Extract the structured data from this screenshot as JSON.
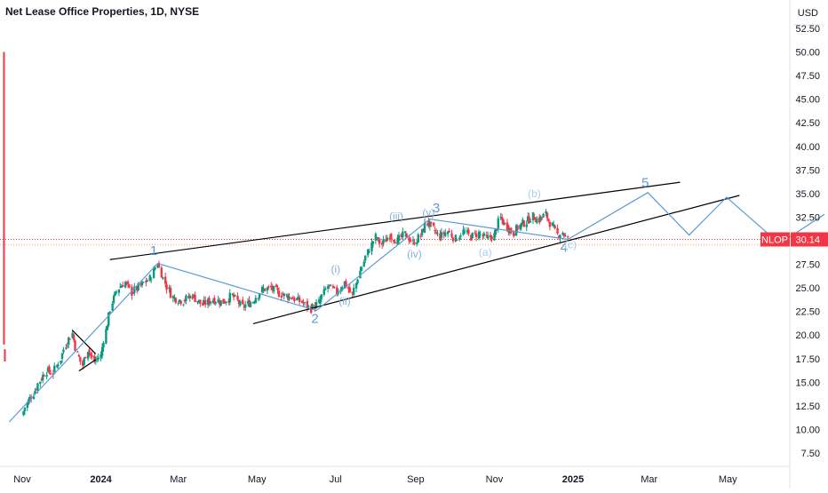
{
  "header": {
    "title": "Net Lease Office Properties, 1D, NYSE",
    "currency": "USD"
  },
  "price_label": {
    "symbol": "NLOP",
    "value": "30.14",
    "color": "#f23645"
  },
  "colors": {
    "up": "#089981",
    "down": "#f23645",
    "wave": "#5b9bd5",
    "minor_label": "#7fb2e0",
    "corrective_label": "#a8cdee",
    "trendline": "#000000",
    "axis_text": "#131722",
    "grid": "#e0e3eb"
  },
  "chart_data": {
    "type": "line",
    "title": "Net Lease Office Properties, 1D, NYSE",
    "xlabel": "",
    "ylabel": "USD",
    "ylim": [
      6.0,
      54.0
    ],
    "grid": false,
    "y_ticks": [
      "52.50",
      "50.00",
      "47.50",
      "45.00",
      "42.50",
      "40.00",
      "37.50",
      "35.00",
      "32.50",
      "30.00",
      "27.50",
      "25.00",
      "22.50",
      "20.00",
      "17.50",
      "15.00",
      "12.50",
      "10.00",
      "7.50"
    ],
    "x_ticks": [
      {
        "label": "Nov",
        "x": "2023-11-01",
        "bold": false
      },
      {
        "label": "2024",
        "x": "2024-01-01",
        "bold": true
      },
      {
        "label": "Mar",
        "x": "2024-03-01",
        "bold": false
      },
      {
        "label": "May",
        "x": "2024-05-01",
        "bold": false
      },
      {
        "label": "Jul",
        "x": "2024-07-01",
        "bold": false
      },
      {
        "label": "Sep",
        "x": "2024-09-01",
        "bold": false
      },
      {
        "label": "Nov",
        "x": "2024-11-01",
        "bold": false
      },
      {
        "label": "2025",
        "x": "2025-01-01",
        "bold": true
      },
      {
        "label": "Mar",
        "x": "2025-03-01",
        "bold": false
      },
      {
        "label": "May",
        "x": "2025-05-01",
        "bold": false
      }
    ],
    "x_range": [
      "2023-10-20",
      "2025-07-15"
    ],
    "price_path": [
      [
        "2023-11-01",
        11.5
      ],
      [
        "2023-11-05",
        12.8
      ],
      [
        "2023-11-10",
        13.8
      ],
      [
        "2023-11-15",
        15.2
      ],
      [
        "2023-11-20",
        16.2
      ],
      [
        "2023-11-25",
        16.0
      ],
      [
        "2023-12-01",
        17.5
      ],
      [
        "2023-12-05",
        19.0
      ],
      [
        "2023-12-10",
        20.2
      ],
      [
        "2023-12-14",
        18.0
      ],
      [
        "2023-12-18",
        16.8
      ],
      [
        "2023-12-22",
        18.5
      ],
      [
        "2023-12-27",
        17.2
      ],
      [
        "2024-01-01",
        17.8
      ],
      [
        "2024-01-05",
        20.5
      ],
      [
        "2024-01-10",
        23.5
      ],
      [
        "2024-01-15",
        25.0
      ],
      [
        "2024-01-20",
        25.6
      ],
      [
        "2024-01-25",
        24.5
      ],
      [
        "2024-02-01",
        25.2
      ],
      [
        "2024-02-08",
        26.0
      ],
      [
        "2024-02-14",
        27.6
      ],
      [
        "2024-02-20",
        25.5
      ],
      [
        "2024-02-26",
        24.0
      ],
      [
        "2024-03-05",
        23.6
      ],
      [
        "2024-03-12",
        24.2
      ],
      [
        "2024-03-20",
        23.2
      ],
      [
        "2024-03-28",
        23.8
      ],
      [
        "2024-04-05",
        23.5
      ],
      [
        "2024-04-12",
        24.2
      ],
      [
        "2024-04-20",
        23.0
      ],
      [
        "2024-04-28",
        23.6
      ],
      [
        "2024-05-05",
        24.8
      ],
      [
        "2024-05-12",
        25.0
      ],
      [
        "2024-05-20",
        24.3
      ],
      [
        "2024-05-28",
        24.0
      ],
      [
        "2024-06-05",
        23.5
      ],
      [
        "2024-06-12",
        22.8
      ],
      [
        "2024-06-18",
        23.4
      ],
      [
        "2024-06-25",
        25.2
      ],
      [
        "2024-07-02",
        24.5
      ],
      [
        "2024-07-08",
        25.6
      ],
      [
        "2024-07-14",
        24.2
      ],
      [
        "2024-07-20",
        26.8
      ],
      [
        "2024-07-26",
        28.8
      ],
      [
        "2024-08-01",
        30.4
      ],
      [
        "2024-08-06",
        29.6
      ],
      [
        "2024-08-12",
        30.6
      ],
      [
        "2024-08-18",
        30.0
      ],
      [
        "2024-08-24",
        30.7
      ],
      [
        "2024-08-30",
        29.8
      ],
      [
        "2024-09-05",
        30.5
      ],
      [
        "2024-09-10",
        32.0
      ],
      [
        "2024-09-15",
        31.2
      ],
      [
        "2024-09-20",
        30.4
      ],
      [
        "2024-09-26",
        31.0
      ],
      [
        "2024-10-02",
        30.2
      ],
      [
        "2024-10-08",
        31.0
      ],
      [
        "2024-10-14",
        30.4
      ],
      [
        "2024-10-20",
        30.8
      ],
      [
        "2024-10-26",
        30.2
      ],
      [
        "2024-11-01",
        30.6
      ],
      [
        "2024-11-06",
        32.4
      ],
      [
        "2024-11-11",
        31.5
      ],
      [
        "2024-11-16",
        30.8
      ],
      [
        "2024-11-21",
        31.6
      ],
      [
        "2024-11-26",
        32.0
      ],
      [
        "2024-12-01",
        32.6
      ],
      [
        "2024-12-06",
        32.2
      ],
      [
        "2024-12-11",
        32.8
      ],
      [
        "2024-12-16",
        31.6
      ],
      [
        "2024-12-20",
        30.6
      ],
      [
        "2024-12-24",
        30.9
      ],
      [
        "2024-12-28",
        30.14
      ]
    ],
    "delisting_bar": {
      "x": "2023-10-22",
      "low": 19.0,
      "high": 50.0
    },
    "wave_path": [
      [
        "2023-10-22",
        10.8
      ],
      [
        "2024-02-14",
        27.6
      ],
      [
        "2024-06-16",
        22.6
      ],
      [
        "2024-09-12",
        32.3
      ],
      [
        "2024-12-28",
        30.14
      ],
      [
        "2025-02-28",
        35.1
      ],
      [
        "2025-04-01",
        30.6
      ],
      [
        "2025-04-30",
        34.6
      ],
      [
        "2025-06-10",
        29.7
      ],
      [
        "2025-07-15",
        32.8
      ]
    ],
    "trendlines": [
      {
        "from": [
          "2024-01-08",
          28.0
        ],
        "to": [
          "2025-03-25",
          36.2
        ]
      },
      {
        "from": [
          "2024-04-28",
          21.2
        ],
        "to": [
          "2025-05-10",
          34.8
        ]
      }
    ],
    "triangle": [
      {
        "from": [
          "2023-12-10",
          20.5
        ],
        "to": [
          "2023-12-28",
          18.0
        ]
      },
      {
        "from": [
          "2023-12-15",
          16.2
        ],
        "to": [
          "2023-12-28",
          17.4
        ]
      }
    ],
    "wave_labels": [
      {
        "text": "1",
        "x": "2024-02-11",
        "y": 28.5,
        "style": "major"
      },
      {
        "text": "2",
        "x": "2024-06-15",
        "y": 21.3,
        "style": "major"
      },
      {
        "text": "3",
        "x": "2024-09-17",
        "y": 33.0,
        "style": "major"
      },
      {
        "text": "4",
        "x": "2024-12-25",
        "y": 28.8,
        "style": "major"
      },
      {
        "text": "5",
        "x": "2025-02-26",
        "y": 35.7,
        "style": "major"
      },
      {
        "text": "(i)",
        "x": "2024-07-01",
        "y": 26.6,
        "style": "minor"
      },
      {
        "text": "(ii)",
        "x": "2024-07-08",
        "y": 23.2,
        "style": "minor"
      },
      {
        "text": "(iii)",
        "x": "2024-08-17",
        "y": 32.2,
        "style": "minor"
      },
      {
        "text": "(iv)",
        "x": "2024-08-31",
        "y": 28.2,
        "style": "minor"
      },
      {
        "text": "(v)",
        "x": "2024-09-11",
        "y": 32.6,
        "style": "minor"
      },
      {
        "text": "(a)",
        "x": "2024-10-25",
        "y": 28.4,
        "style": "corrective"
      },
      {
        "text": "(b)",
        "x": "2024-12-02",
        "y": 34.6,
        "style": "corrective"
      },
      {
        "text": "(c)",
        "x": "2024-12-30",
        "y": 29.2,
        "style": "corrective"
      }
    ],
    "last_price": 30.14
  }
}
